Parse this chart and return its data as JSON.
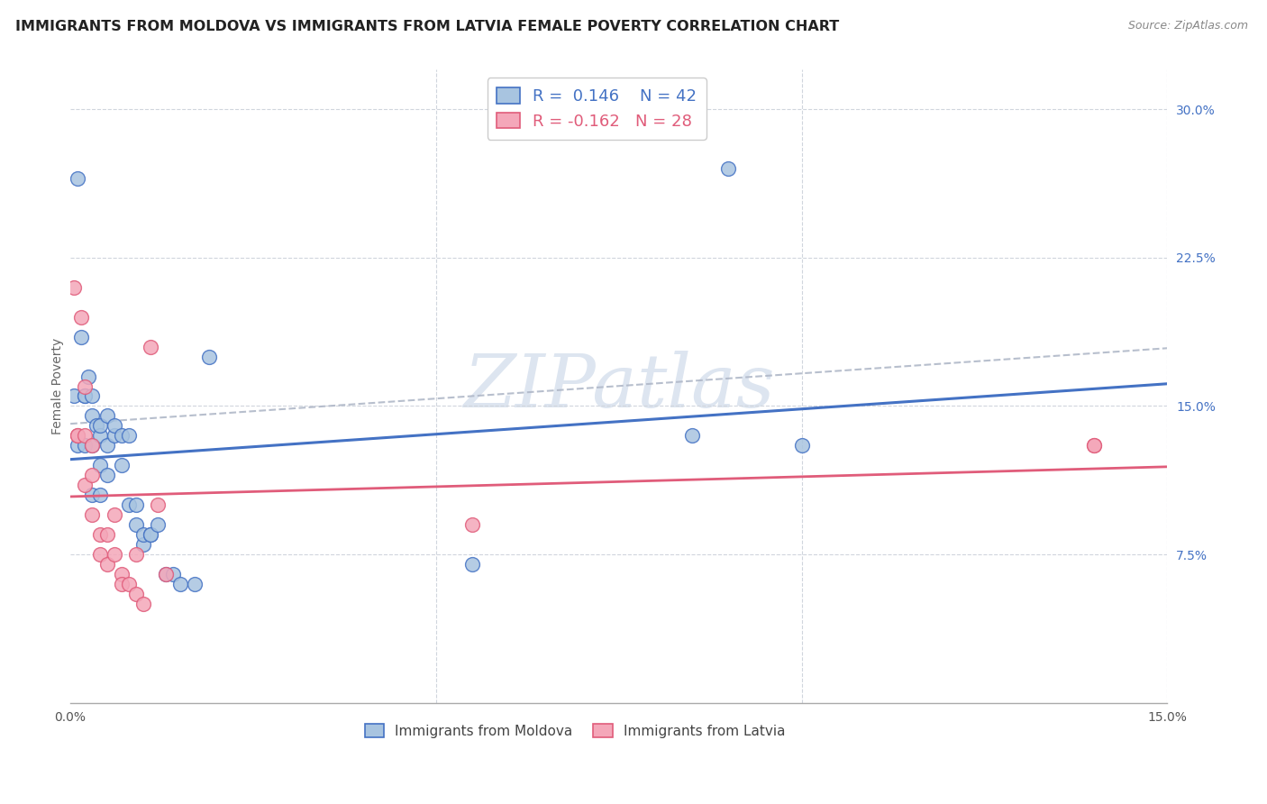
{
  "title": "IMMIGRANTS FROM MOLDOVA VS IMMIGRANTS FROM LATVIA FEMALE POVERTY CORRELATION CHART",
  "source": "Source: ZipAtlas.com",
  "ylabel": "Female Poverty",
  "xlim": [
    0.0,
    0.15
  ],
  "ylim": [
    0.0,
    0.32
  ],
  "y_ticks_right": [
    0.075,
    0.15,
    0.225,
    0.3
  ],
  "y_tick_labels_right": [
    "7.5%",
    "15.0%",
    "22.5%",
    "30.0%"
  ],
  "legend_r_moldova": "0.146",
  "legend_n_moldova": "42",
  "legend_r_latvia": "-0.162",
  "legend_n_latvia": "28",
  "color_moldova": "#a8c4e0",
  "color_latvia": "#f4a7b9",
  "line_color_moldova": "#4472c4",
  "line_color_latvia": "#e05c7a",
  "line_dash_color": "#b0b8c8",
  "background_color": "#ffffff",
  "grid_color": "#d0d5dd",
  "moldova_x": [
    0.0005,
    0.001,
    0.001,
    0.0015,
    0.002,
    0.002,
    0.002,
    0.0025,
    0.003,
    0.003,
    0.003,
    0.003,
    0.0035,
    0.004,
    0.004,
    0.004,
    0.004,
    0.005,
    0.005,
    0.005,
    0.006,
    0.006,
    0.007,
    0.007,
    0.008,
    0.008,
    0.009,
    0.009,
    0.01,
    0.01,
    0.011,
    0.011,
    0.012,
    0.013,
    0.014,
    0.015,
    0.017,
    0.019,
    0.055,
    0.085,
    0.09,
    0.1
  ],
  "moldova_y": [
    0.155,
    0.13,
    0.265,
    0.185,
    0.155,
    0.155,
    0.13,
    0.165,
    0.155,
    0.145,
    0.13,
    0.105,
    0.14,
    0.135,
    0.14,
    0.12,
    0.105,
    0.115,
    0.13,
    0.145,
    0.135,
    0.14,
    0.12,
    0.135,
    0.1,
    0.135,
    0.09,
    0.1,
    0.08,
    0.085,
    0.085,
    0.085,
    0.09,
    0.065,
    0.065,
    0.06,
    0.06,
    0.175,
    0.07,
    0.135,
    0.27,
    0.13
  ],
  "latvia_x": [
    0.0005,
    0.001,
    0.001,
    0.0015,
    0.002,
    0.002,
    0.002,
    0.003,
    0.003,
    0.003,
    0.004,
    0.004,
    0.005,
    0.005,
    0.006,
    0.006,
    0.007,
    0.007,
    0.008,
    0.009,
    0.009,
    0.01,
    0.011,
    0.012,
    0.013,
    0.055,
    0.14,
    0.14
  ],
  "latvia_y": [
    0.21,
    0.135,
    0.135,
    0.195,
    0.16,
    0.135,
    0.11,
    0.13,
    0.115,
    0.095,
    0.085,
    0.075,
    0.085,
    0.07,
    0.095,
    0.075,
    0.065,
    0.06,
    0.06,
    0.075,
    0.055,
    0.05,
    0.18,
    0.1,
    0.065,
    0.09,
    0.13,
    0.13
  ],
  "watermark": "ZIPatlas",
  "title_fontsize": 11.5,
  "axis_label_fontsize": 10,
  "tick_fontsize": 10,
  "legend_fontsize": 13
}
